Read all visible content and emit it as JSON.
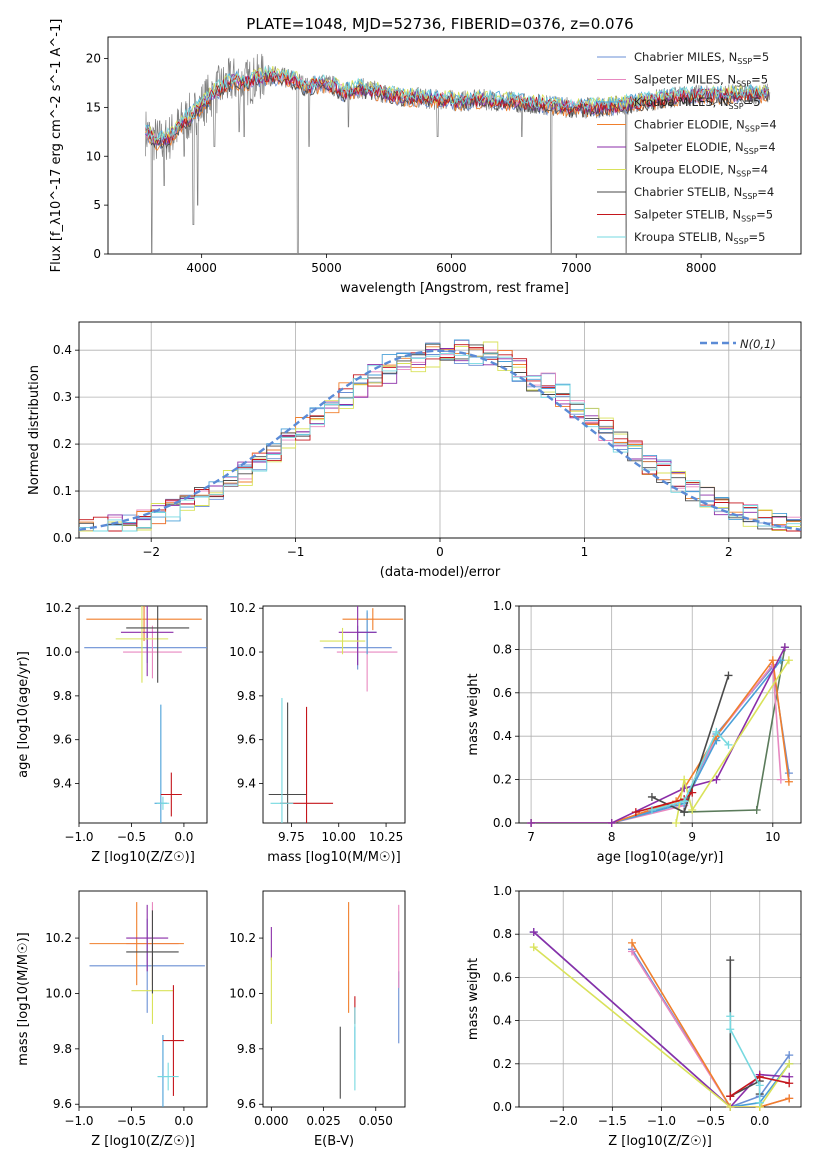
{
  "figure": {
    "title": "PLATE=1048, MJD=52736, FIBERID=0376, z=0.076"
  },
  "models": [
    {
      "name": "Chabrier MILES",
      "nssp": "5",
      "color": "#6a8fd4"
    },
    {
      "name": "Salpeter MILES",
      "nssp": "5",
      "color": "#e888c0"
    },
    {
      "name": "Kroupa MILES",
      "nssp": "5",
      "color": "#4aa0d8"
    },
    {
      "name": "Chabrier ELODIE",
      "nssp": "4",
      "color": "#f07f2c"
    },
    {
      "name": "Salpeter ELODIE",
      "nssp": "4",
      "color": "#8b2ea8"
    },
    {
      "name": "Kroupa ELODIE",
      "nssp": "4",
      "color": "#d9e25a"
    },
    {
      "name": "Chabrier STELIB",
      "nssp": "4",
      "color": "#4a4a4a"
    },
    {
      "name": "Salpeter STELIB",
      "nssp": "5",
      "color": "#c4161c"
    },
    {
      "name": "Kroupa STELIB",
      "nssp": "5",
      "color": "#76d9e0"
    }
  ],
  "chart_data": [
    {
      "id": "spectrum",
      "type": "line",
      "title": "PLATE=1048, MJD=52736, FIBERID=0376, z=0.076",
      "xlabel": "wavelength [Angstrom, rest frame]",
      "ylabel": "Flux [f_λ10^-17 erg cm^-2 s^-1 A^-1]",
      "xlim": [
        3250,
        8800
      ],
      "ylim": [
        0,
        22.2
      ],
      "xticks": [
        4000,
        5000,
        6000,
        7000,
        8000
      ],
      "yticks": [
        0,
        5,
        10,
        15,
        20
      ],
      "observed_color": "#808080",
      "continuum": [
        [
          3550,
          12.5
        ],
        [
          3650,
          11.5
        ],
        [
          3750,
          12.0
        ],
        [
          3850,
          13.5
        ],
        [
          3950,
          14.5
        ],
        [
          4050,
          16.0
        ],
        [
          4150,
          17.0
        ],
        [
          4250,
          17.8
        ],
        [
          4350,
          17.5
        ],
        [
          4450,
          18.0
        ],
        [
          4550,
          18.3
        ],
        [
          4650,
          18.0
        ],
        [
          4750,
          17.8
        ],
        [
          4850,
          17.0
        ],
        [
          4950,
          17.5
        ],
        [
          5050,
          17.2
        ],
        [
          5150,
          16.5
        ],
        [
          5250,
          17.0
        ],
        [
          5350,
          16.8
        ],
        [
          5450,
          16.5
        ],
        [
          5550,
          16.2
        ],
        [
          5650,
          16.0
        ],
        [
          5750,
          16.0
        ],
        [
          5850,
          15.8
        ],
        [
          5950,
          15.8
        ],
        [
          6050,
          15.6
        ],
        [
          6150,
          15.7
        ],
        [
          6250,
          15.8
        ],
        [
          6350,
          15.7
        ],
        [
          6450,
          15.6
        ],
        [
          6550,
          15.5
        ],
        [
          6650,
          15.4
        ],
        [
          6750,
          15.3
        ],
        [
          6850,
          15.1
        ],
        [
          6950,
          15.0
        ],
        [
          7050,
          15.0
        ],
        [
          7150,
          15.0
        ],
        [
          7250,
          15.1
        ],
        [
          7350,
          15.2
        ],
        [
          7450,
          15.4
        ],
        [
          7550,
          15.6
        ],
        [
          7650,
          15.8
        ],
        [
          7750,
          16.0
        ],
        [
          7850,
          16.2
        ],
        [
          7950,
          16.2
        ],
        [
          8050,
          16.2
        ],
        [
          8150,
          16.3
        ],
        [
          8250,
          16.3
        ],
        [
          8350,
          16.4
        ],
        [
          8450,
          16.4
        ],
        [
          8550,
          16.4
        ]
      ],
      "absorption": [
        [
          3600,
          0
        ],
        [
          3700,
          7
        ],
        [
          3860,
          10
        ],
        [
          3934,
          3
        ],
        [
          3969,
          5
        ],
        [
          4102,
          11
        ],
        [
          4300,
          12.5
        ],
        [
          4340,
          12
        ],
        [
          4861,
          11
        ],
        [
          4770,
          0
        ],
        [
          5175,
          13
        ],
        [
          5890,
          12
        ],
        [
          6563,
          12
        ],
        [
          6800,
          0
        ],
        [
          7400,
          0
        ]
      ]
    },
    {
      "id": "residuals",
      "type": "histogram",
      "xlabel": "(data-model)/error",
      "ylabel": "Normed distribution",
      "xlim": [
        -2.5,
        2.5
      ],
      "ylim": [
        0,
        0.46
      ],
      "xticks": [
        -2,
        -1,
        0,
        1,
        2
      ],
      "yticks": [
        0.0,
        0.1,
        0.2,
        0.3,
        0.4
      ],
      "grid": true,
      "legend": "N(0,1)",
      "legend_position": "top-right",
      "reference": {
        "name": "N(0,1)",
        "mean": 0,
        "sigma": 1,
        "style": "dashed",
        "color": "#5b8bd6"
      }
    },
    {
      "id": "age-vs-Z",
      "type": "errorbar",
      "xlabel": "Z [log10(Z/Z☉)]",
      "ylabel": "age [log10(age/yr)]",
      "xlim": [
        -1.0,
        0.22
      ],
      "ylim": [
        9.22,
        10.21
      ],
      "xticks": [
        -1.0,
        -0.5,
        0.0
      ],
      "yticks": [
        9.4,
        9.6,
        9.8,
        10.0,
        10.2
      ],
      "points": [
        {
          "model": 0,
          "x": -0.35,
          "xerr": 0.6,
          "y": 10.02,
          "yerr": 0.07
        },
        {
          "model": 1,
          "x": -0.3,
          "xerr": 0.28,
          "y": 10.0,
          "yerr": 0.12
        },
        {
          "model": 2,
          "x": -0.22,
          "xerr": 0.06,
          "y": 9.31,
          "yerr": 0.45
        },
        {
          "model": 3,
          "x": -0.38,
          "xerr": 0.55,
          "y": 10.15,
          "yerr": 0.1
        },
        {
          "model": 4,
          "x": -0.35,
          "xerr": 0.25,
          "y": 10.09,
          "yerr": 0.2
        },
        {
          "model": 5,
          "x": -0.4,
          "xerr": 0.25,
          "y": 10.06,
          "yerr": 0.2
        },
        {
          "model": 6,
          "x": -0.25,
          "xerr": 0.3,
          "y": 10.11,
          "yerr": 0.25
        },
        {
          "model": 7,
          "x": -0.12,
          "xerr": 0.1,
          "y": 9.35,
          "yerr": 0.1
        },
        {
          "model": 8,
          "x": -0.2,
          "xerr": 0.06,
          "y": 9.31,
          "yerr": 0.03
        }
      ]
    },
    {
      "id": "age-vs-mass",
      "type": "errorbar",
      "xlabel": "mass [log10(M/M☉)]",
      "ylabel": "",
      "xlim": [
        9.6,
        10.35
      ],
      "ylim": [
        9.22,
        10.21
      ],
      "xticks": [
        9.75,
        10.0,
        10.25
      ],
      "yticks": [
        9.4,
        9.6,
        9.8,
        10.0,
        10.2
      ],
      "points": [
        {
          "model": 0,
          "x": 10.1,
          "xerr": 0.18,
          "y": 10.02,
          "yerr": 0.1
        },
        {
          "model": 1,
          "x": 10.15,
          "xerr": 0.16,
          "y": 10.0,
          "yerr": 0.18
        },
        {
          "model": 2,
          "x": 10.15,
          "xerr": 0.05,
          "y": 10.09,
          "yerr": 0.1
        },
        {
          "model": 3,
          "x": 10.18,
          "xerr": 0.16,
          "y": 10.15,
          "yerr": 0.05
        },
        {
          "model": 4,
          "x": 10.1,
          "xerr": 0.1,
          "y": 10.09,
          "yerr": 0.15
        },
        {
          "model": 5,
          "x": 10.02,
          "xerr": 0.12,
          "y": 10.05,
          "yerr": 0.06
        },
        {
          "model": 6,
          "x": 9.73,
          "xerr": 0.1,
          "y": 9.35,
          "yerr": 0.42
        },
        {
          "model": 7,
          "x": 9.83,
          "xerr": 0.14,
          "y": 9.31,
          "yerr": 0.44
        },
        {
          "model": 8,
          "x": 9.7,
          "xerr": 0.06,
          "y": 9.31,
          "yerr": 0.48
        }
      ]
    },
    {
      "id": "weight-vs-age",
      "type": "line",
      "xlabel": "age [log10(age/yr)]",
      "ylabel": "mass weight",
      "xlim": [
        6.85,
        10.35
      ],
      "ylim": [
        0,
        1.0
      ],
      "xticks": [
        7,
        8,
        9,
        10
      ],
      "yticks": [
        0.0,
        0.2,
        0.4,
        0.6,
        0.8,
        1.0
      ],
      "grid": true,
      "series": [
        {
          "model": 0,
          "x": [
            7.0,
            8.0,
            8.9,
            9.3,
            10.0,
            10.2
          ],
          "y": [
            0.0,
            0.0,
            0.1,
            0.41,
            0.72,
            0.23
          ]
        },
        {
          "model": 1,
          "x": [
            7.0,
            8.0,
            8.9,
            9.3,
            10.0,
            10.1
          ],
          "y": [
            0.0,
            0.0,
            0.08,
            0.4,
            0.73,
            0.2
          ]
        },
        {
          "model": 2,
          "x": [
            7.0,
            8.0,
            8.9,
            9.3,
            10.1
          ],
          "y": [
            0.0,
            0.0,
            0.09,
            0.38,
            0.75
          ]
        },
        {
          "model": 3,
          "x": [
            7.0,
            8.0,
            8.8,
            9.3,
            10.0,
            10.2
          ],
          "y": [
            0.0,
            0.0,
            0.1,
            0.4,
            0.75,
            0.19
          ]
        },
        {
          "model": 4,
          "x": [
            7.0,
            8.0,
            8.9,
            9.3,
            10.15
          ],
          "y": [
            0.0,
            0.0,
            0.16,
            0.2,
            0.81
          ]
        },
        {
          "model": 5,
          "x": [
            8.8,
            8.9,
            9.0,
            10.2
          ],
          "y": [
            0.0,
            0.2,
            0.06,
            0.75
          ]
        },
        {
          "model": 6,
          "x": [
            8.5,
            8.9,
            9.45
          ],
          "y": [
            0.12,
            0.05,
            0.68
          ]
        },
        {
          "model": 7,
          "x": [
            8.3,
            8.9,
            9.0
          ],
          "y": [
            0.05,
            0.11,
            0.14
          ]
        },
        {
          "model": 8,
          "x": [
            8.5,
            8.9,
            9.3,
            9.45
          ],
          "y": [
            0.06,
            0.1,
            0.42,
            0.36
          ]
        }
      ],
      "extra_series": [
        {
          "model": 6,
          "x": [
            8.9,
            9.8,
            10.15
          ],
          "y": [
            0.05,
            0.06,
            0.81
          ],
          "color": "#5b7b5b"
        }
      ]
    },
    {
      "id": "mass-vs-Z",
      "type": "errorbar",
      "xlabel": "Z [log10(Z/Z☉)]",
      "ylabel": "mass [log10(M/M☉)]",
      "xlim": [
        -1.0,
        0.22
      ],
      "ylim": [
        9.59,
        10.37
      ],
      "xticks": [
        -1.0,
        -0.5,
        0.0
      ],
      "yticks": [
        9.6,
        9.8,
        10.0,
        10.2
      ],
      "points": [
        {
          "model": 0,
          "x": -0.35,
          "xerr": 0.55,
          "y": 10.1,
          "yerr": 0.17
        },
        {
          "model": 1,
          "x": -0.3,
          "xerr": 0.25,
          "y": 10.18,
          "yerr": 0.15
        },
        {
          "model": 2,
          "x": -0.2,
          "xerr": 0.05,
          "y": 9.7,
          "yerr": 0.15
        },
        {
          "model": 3,
          "x": -0.45,
          "xerr": 0.45,
          "y": 10.18,
          "yerr": 0.15
        },
        {
          "model": 4,
          "x": -0.35,
          "xerr": 0.2,
          "y": 10.2,
          "yerr": 0.12
        },
        {
          "model": 5,
          "x": -0.3,
          "xerr": 0.2,
          "y": 10.01,
          "yerr": 0.12
        },
        {
          "model": 6,
          "x": -0.3,
          "xerr": 0.25,
          "y": 10.15,
          "yerr": 0.15
        },
        {
          "model": 7,
          "x": -0.1,
          "xerr": 0.1,
          "y": 9.83,
          "yerr": 0.2
        },
        {
          "model": 8,
          "x": -0.15,
          "xerr": 0.1,
          "y": 9.7,
          "yerr": 0.05
        }
      ]
    },
    {
      "id": "mass-vs-EBV",
      "type": "errorbar",
      "xlabel": "E(B-V)",
      "ylabel": "",
      "xlim": [
        -0.004,
        0.064
      ],
      "ylim": [
        9.59,
        10.37
      ],
      "xticks": [
        0.0,
        0.025,
        0.05
      ],
      "xticklabels": [
        "0.000",
        "0.025",
        "0.050"
      ],
      "yticks": [
        9.6,
        9.8,
        10.0,
        10.2
      ],
      "points": [
        {
          "model": 0,
          "x": 0.061,
          "xerr": 0,
          "y": 9.95,
          "yerr": 0.13
        },
        {
          "model": 1,
          "x": 0.061,
          "xerr": 0,
          "y": 10.17,
          "yerr": 0.15
        },
        {
          "model": 2,
          "x": 0.04,
          "xerr": 0,
          "y": 9.82,
          "yerr": 0.06
        },
        {
          "model": 3,
          "x": 0.037,
          "xerr": 0,
          "y": 10.13,
          "yerr": 0.2
        },
        {
          "model": 4,
          "x": 0.0,
          "xerr": 0,
          "y": 10.18,
          "yerr": 0.06
        },
        {
          "model": 5,
          "x": 0.0,
          "xerr": 0,
          "y": 10.01,
          "yerr": 0.12
        },
        {
          "model": 6,
          "x": 0.033,
          "xerr": 0,
          "y": 9.75,
          "yerr": 0.13
        },
        {
          "model": 7,
          "x": 0.04,
          "xerr": 0,
          "y": 9.94,
          "yerr": 0.05
        },
        {
          "model": 8,
          "x": 0.04,
          "xerr": 0,
          "y": 9.8,
          "yerr": 0.15
        }
      ]
    },
    {
      "id": "weight-vs-Z",
      "type": "line",
      "xlabel": "Z [log10(Z/Z☉)]",
      "ylabel": "mass weight",
      "xlim": [
        -2.45,
        0.42
      ],
      "ylim": [
        0,
        1.0
      ],
      "xticks": [
        -2.0,
        -1.5,
        -1.0,
        -0.5,
        0.0
      ],
      "yticks": [
        0.0,
        0.2,
        0.4,
        0.6,
        0.8,
        1.0
      ],
      "grid": true,
      "series": [
        {
          "model": 0,
          "x": [
            -1.3,
            -0.3,
            0.0,
            0.3
          ],
          "y": [
            0.73,
            0.0,
            0.05,
            0.24
          ]
        },
        {
          "model": 1,
          "x": [
            -1.3,
            -0.3,
            0.0,
            0.3
          ],
          "y": [
            0.72,
            0.0,
            0.0,
            0.04
          ]
        },
        {
          "model": 2,
          "x": [
            -2.3,
            -0.3,
            0.0,
            0.3
          ],
          "y": [
            0.81,
            0.0,
            0.02,
            0.2
          ]
        },
        {
          "model": 3,
          "x": [
            -1.3,
            -0.3,
            0.0,
            0.3
          ],
          "y": [
            0.76,
            0.0,
            0.0,
            0.04
          ]
        },
        {
          "model": 4,
          "x": [
            -2.3,
            -0.3,
            0.0,
            0.3
          ],
          "y": [
            0.81,
            0.0,
            0.15,
            0.14
          ]
        },
        {
          "model": 5,
          "x": [
            -2.3,
            -0.3,
            0.0,
            0.3
          ],
          "y": [
            0.74,
            0.0,
            0.0,
            0.2
          ]
        },
        {
          "model": 6,
          "x": [
            -0.3,
            -0.3,
            0.0,
            0.0
          ],
          "y": [
            0.68,
            0.05,
            0.12,
            0.06
          ]
        },
        {
          "model": 7,
          "x": [
            -0.3,
            0.0,
            0.3
          ],
          "y": [
            0.05,
            0.14,
            0.11
          ]
        },
        {
          "model": 8,
          "x": [
            -0.3,
            -0.3,
            0.0,
            0.0
          ],
          "y": [
            0.42,
            0.36,
            0.1,
            0.02
          ]
        }
      ]
    }
  ]
}
